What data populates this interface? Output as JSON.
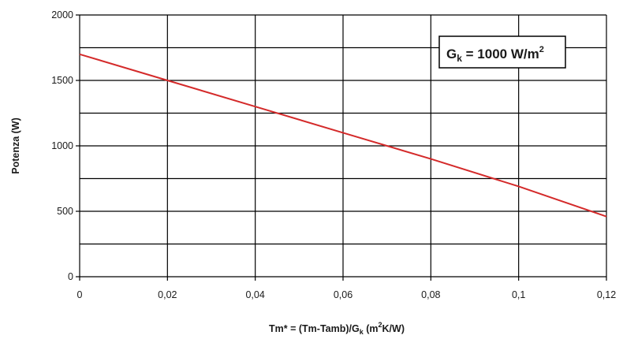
{
  "chart_data": {
    "type": "line",
    "title": "",
    "xlabel_parts": {
      "prefix": "Tm* = (Tm-Tamb)/G",
      "sub": "k",
      "mid": " (m",
      "sup": "2",
      "suffix": "K/W)"
    },
    "ylabel": "Potenza (W)",
    "xlim": [
      0,
      0.12
    ],
    "ylim": [
      0,
      2000
    ],
    "x_ticks": [
      0,
      0.02,
      0.04,
      0.06,
      0.08,
      0.1,
      0.12
    ],
    "x_tick_labels": [
      "0",
      "0,02",
      "0,04",
      "0,06",
      "0,08",
      "0,1",
      "0,12"
    ],
    "y_ticks": [
      0,
      500,
      1000,
      1500,
      2000
    ],
    "y_tick_labels": [
      "0",
      "500",
      "1000",
      "1500",
      "2000"
    ],
    "grid": true,
    "grid_y_step": 250,
    "line_color": "#d42a2a",
    "series": [
      {
        "x": [
          0,
          0.02,
          0.04,
          0.06,
          0.08,
          0.1,
          0.12
        ],
        "y": [
          1700,
          1500,
          1300,
          1100,
          900,
          690,
          460
        ]
      }
    ],
    "annotation": {
      "main": "G",
      "sub": "k",
      "mid": " = 1000 W/m",
      "sup": "2",
      "placement": "top-right"
    }
  }
}
